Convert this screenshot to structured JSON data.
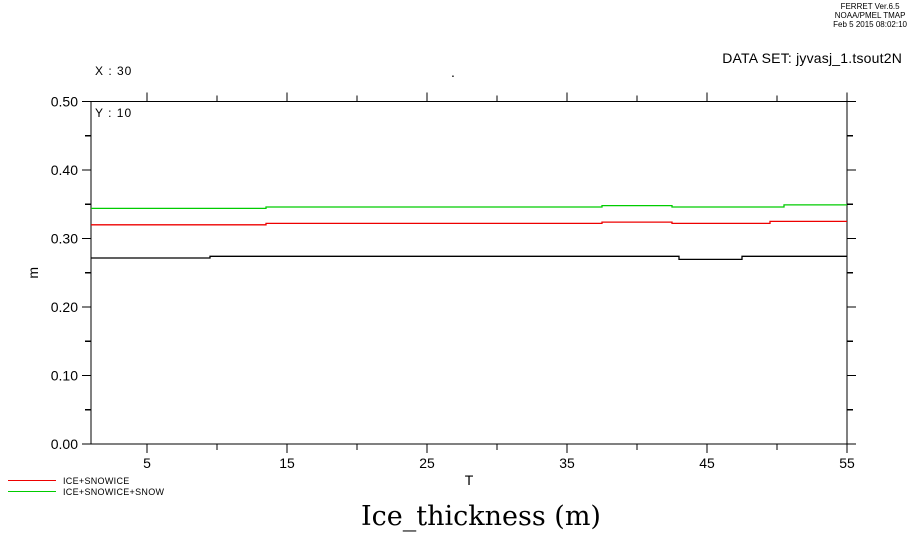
{
  "header": {
    "version": "FERRET Ver.6.5",
    "organization": "NOAA/PMEL TMAP",
    "timestamp": "Feb 5 2015 08:02:10"
  },
  "slice": {
    "x_label": "X : 30",
    "y_label": "Y : 10"
  },
  "dataset_label": "DATA SET: jyvasj_1.tsout2N",
  "stray_mark": ".",
  "title": "Ice_thickness (m)",
  "legend": {
    "position": "bottom-left",
    "items": [
      {
        "label": "ICE+SNOWICE",
        "color": "#ee0000"
      },
      {
        "label": "ICE+SNOWICE+SNOW",
        "color": "#00cc00"
      }
    ]
  },
  "chart_data": {
    "type": "line",
    "title": "Ice_thickness (m)",
    "xlabel": "T",
    "ylabel": "m",
    "xlim": [
      1,
      55
    ],
    "ylim": [
      0,
      0.5
    ],
    "x_major_ticks": [
      5,
      15,
      25,
      35,
      45,
      55
    ],
    "x_minor_ticks": [
      10,
      20,
      30,
      40,
      50
    ],
    "y_major_ticks": [
      0,
      0.1,
      0.2,
      0.3,
      0.4,
      0.5
    ],
    "y_minor_ticks": [
      0.05,
      0.15,
      0.25,
      0.35,
      0.45
    ],
    "grid": false,
    "series": [
      {
        "name": "ICE+SNOWICE+SNOW",
        "color": "#00cc00",
        "points": [
          [
            1,
            0.344
          ],
          [
            13.5,
            0.344
          ],
          [
            13.5,
            0.346
          ],
          [
            37.5,
            0.346
          ],
          [
            37.5,
            0.348
          ],
          [
            42.5,
            0.348
          ],
          [
            42.5,
            0.346
          ],
          [
            50.5,
            0.346
          ],
          [
            50.5,
            0.349
          ],
          [
            55,
            0.349
          ]
        ]
      },
      {
        "name": "ICE+SNOWICE",
        "color": "#ee0000",
        "points": [
          [
            1,
            0.32
          ],
          [
            13.5,
            0.32
          ],
          [
            13.5,
            0.322
          ],
          [
            37.5,
            0.322
          ],
          [
            37.5,
            0.324
          ],
          [
            42.5,
            0.324
          ],
          [
            42.5,
            0.322
          ],
          [
            49.5,
            0.322
          ],
          [
            49.5,
            0.325
          ],
          [
            55,
            0.325
          ]
        ]
      },
      {
        "name": "",
        "color": "#000000",
        "points": [
          [
            1,
            0.2715
          ],
          [
            9.5,
            0.2715
          ],
          [
            9.5,
            0.274
          ],
          [
            43,
            0.274
          ],
          [
            43,
            0.2695
          ],
          [
            47.5,
            0.2695
          ],
          [
            47.5,
            0.274
          ],
          [
            55,
            0.274
          ]
        ]
      }
    ]
  }
}
